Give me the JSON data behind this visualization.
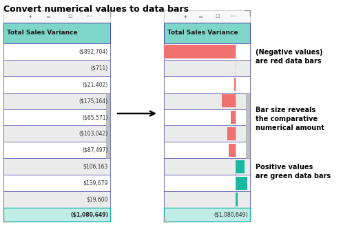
{
  "title": "Convert numerical values to data bars",
  "title_fontsize": 9,
  "title_fontweight": "bold",
  "header_color": "#7dd6c8",
  "header_text": "Total Sales Variance",
  "header_text_color": "#1a1a1a",
  "row_colors": [
    "#ffffff",
    "#ebebeb"
  ],
  "border_color": "#4444aa",
  "values": [
    "($892,704)",
    "($711)",
    "($21,402)",
    "($175,164)",
    "($65,571)",
    "($103,042)",
    "($87,497)",
    "$106,163",
    "$139,679",
    "$19,600",
    "($1,080,649)"
  ],
  "bar_values": [
    -892704,
    -711,
    -21402,
    -175164,
    -65571,
    -103042,
    -87497,
    106163,
    139679,
    19600,
    null
  ],
  "total_row_color": "#c0ede8",
  "total_border_color": "#18b0a0",
  "bar_max": 892704,
  "bar_neg_color": "#f07070",
  "bar_pos_color": "#18b8a0",
  "dotted_line_color": "#999999",
  "icon_color": "#999999",
  "ann1_text": "(Negative values)\nare red data bars",
  "ann2_text": "Bar size reveals\nthe comparative\nnumerical amount",
  "ann3_text": "Positive values\nare green data bars",
  "ann_fontsize": 7,
  "ann_fontweight": "bold"
}
